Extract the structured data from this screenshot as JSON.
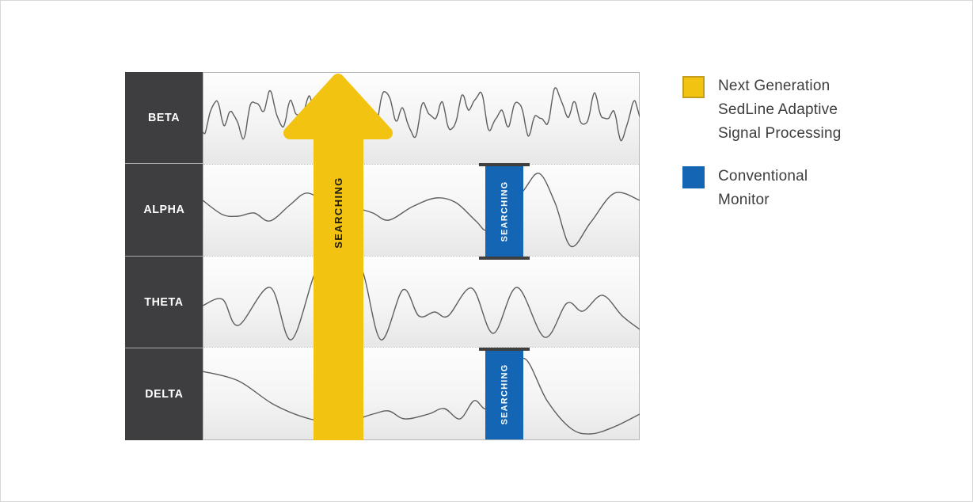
{
  "chart": {
    "bands": [
      {
        "label": "BETA"
      },
      {
        "label": "ALPHA"
      },
      {
        "label": "THETA"
      },
      {
        "label": "DELTA"
      }
    ],
    "arrow": {
      "label": "SEARCHING",
      "color": "#F2C411"
    },
    "monitor_bars": [
      {
        "band": "ALPHA",
        "label": "SEARCHING"
      },
      {
        "band": "DELTA",
        "label": "SEARCHING"
      }
    ],
    "bar_color": "#1565B5",
    "sidebar_color": "#3E3E40"
  },
  "legend": {
    "items": [
      {
        "label": "Next Generation\nSedLine Adaptive\nSignal Processing",
        "color": "#F2C411"
      },
      {
        "label": "Conventional\nMonitor",
        "color": "#1565B5"
      }
    ]
  }
}
